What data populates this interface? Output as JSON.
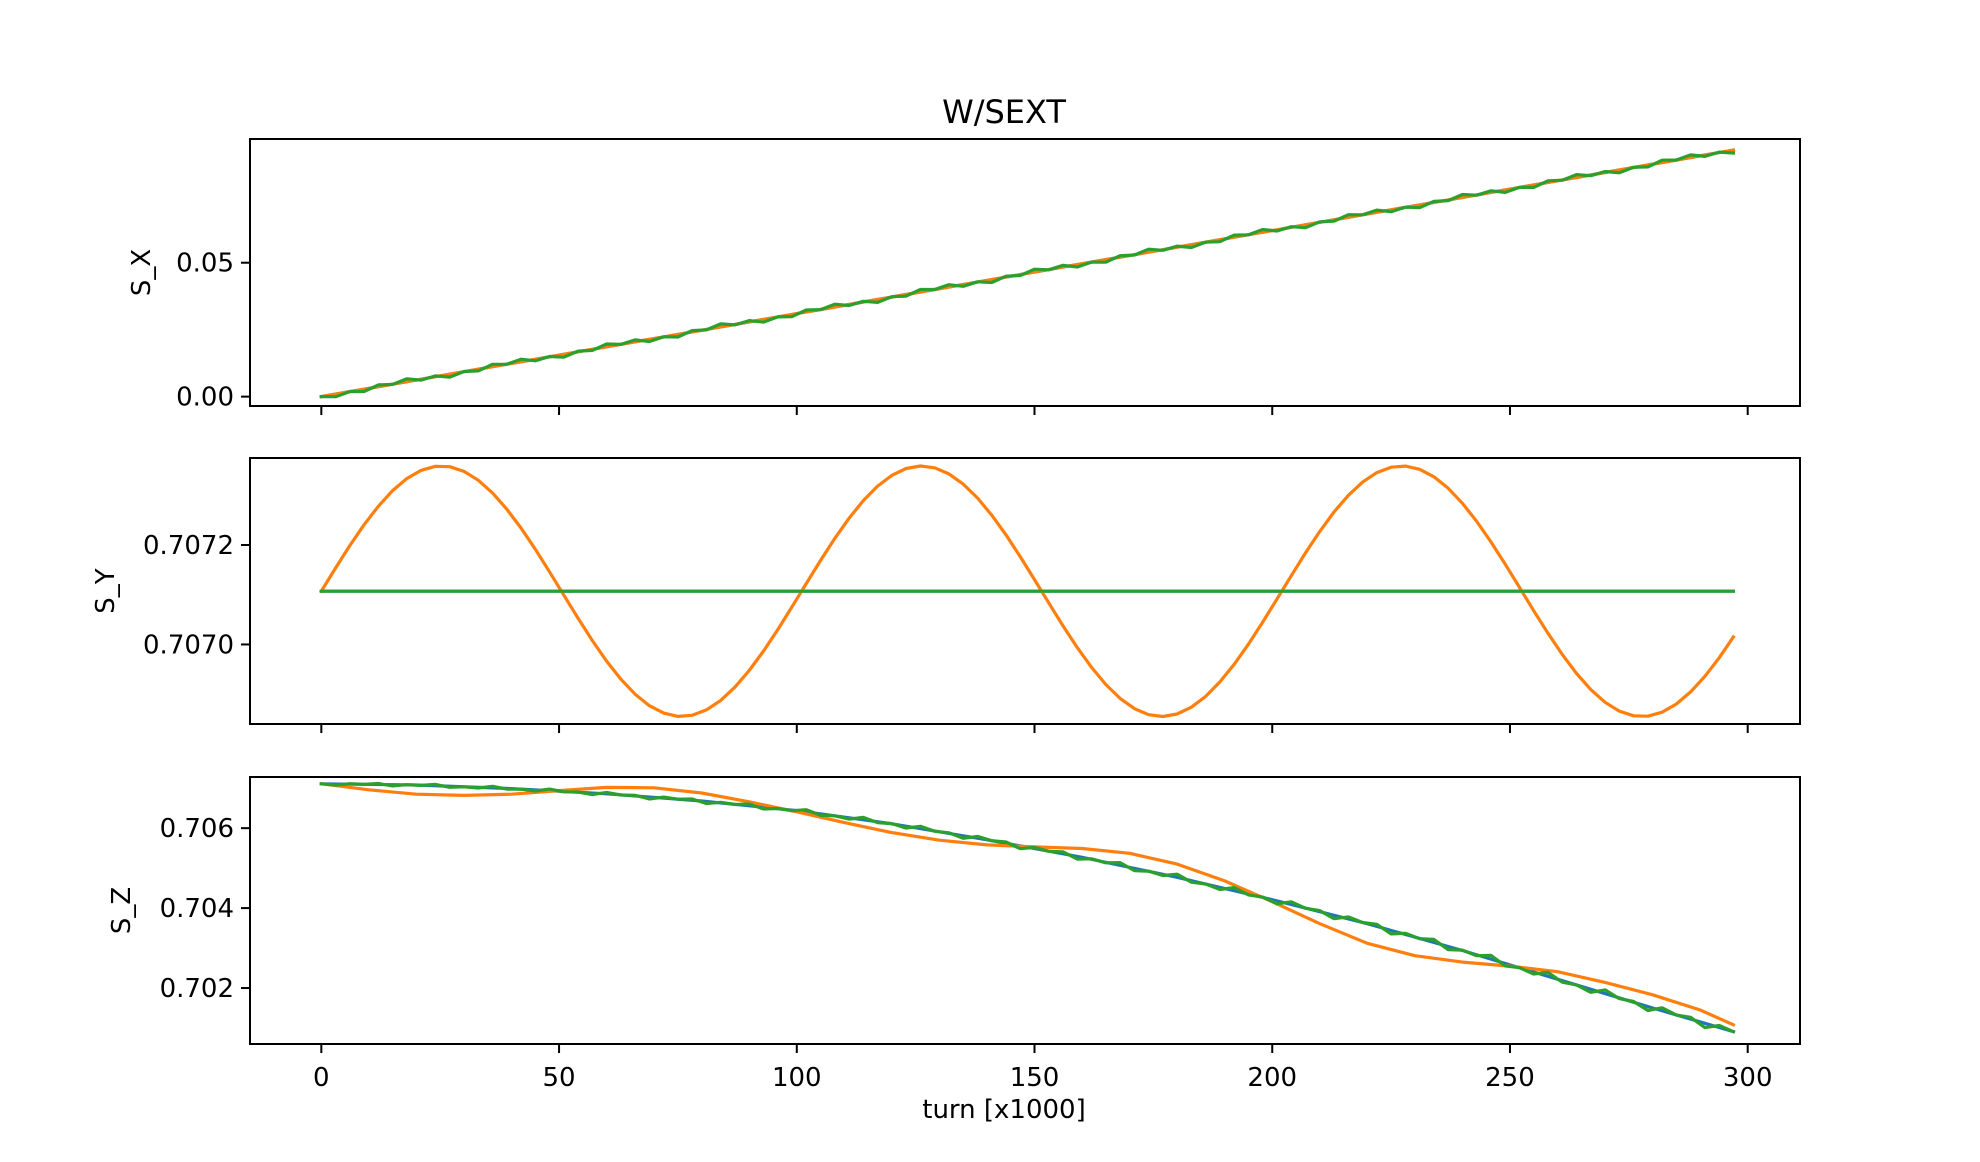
{
  "chart_data": {
    "type": "line",
    "title": "W/SEXT",
    "xlabel": "turn [x1000]",
    "xlim": [
      -15,
      311
    ],
    "xticks": [
      0,
      50,
      100,
      150,
      200,
      250,
      300
    ],
    "xtick_labels": [
      "0",
      "50",
      "100",
      "150",
      "200",
      "250",
      "300"
    ],
    "colors": {
      "blue": "#1f77b4",
      "orange": "#ff7f0e",
      "green": "#2ca02c"
    },
    "grid": false,
    "subplots": [
      {
        "id": "sx",
        "ylabel": "S_X",
        "ylim": [
          -0.0035,
          0.0962
        ],
        "yticks": [
          0.0,
          0.05
        ],
        "ytick_labels": [
          "0.00",
          "0.05"
        ],
        "series": [
          {
            "color": "#1f77b4",
            "kind": "generated",
            "gen": "linear",
            "a": 0.0,
            "b": 0.00031,
            "x_start": 0,
            "x_step": 3,
            "n": 100
          },
          {
            "color": "#ff7f0e",
            "kind": "generated",
            "gen": "linear",
            "a": 0.0,
            "b": 0.00031,
            "x_start": 0,
            "x_step": 3,
            "n": 100
          },
          {
            "color": "#2ca02c",
            "kind": "generated",
            "gen": "linear_zigzag",
            "a": 0.0,
            "b": 0.00031,
            "amp": 0.0011,
            "x_start": 0,
            "x_step": 3,
            "n": 100
          }
        ]
      },
      {
        "id": "sy",
        "ylabel": "S_Y",
        "ylim": [
          0.70684,
          0.707375
        ],
        "yticks": [
          0.707,
          0.7072
        ],
        "ytick_labels": [
          "0.7070",
          "0.7072"
        ],
        "series": [
          {
            "color": "#1f77b4",
            "kind": "generated",
            "gen": "constant",
            "a": 0.707107,
            "x_start": 0,
            "x_step": 3,
            "n": 100
          },
          {
            "color": "#ff7f0e",
            "kind": "generated",
            "gen": "sine",
            "a": 0.707107,
            "amp": 0.000252,
            "period": 101,
            "x_start": 0,
            "x_step": 3,
            "n": 100
          },
          {
            "color": "#2ca02c",
            "kind": "generated",
            "gen": "constant",
            "a": 0.707107,
            "x_start": 0,
            "x_step": 3,
            "n": 100
          }
        ]
      },
      {
        "id": "sz",
        "ylabel": "S_Z",
        "ylim": [
          0.7006,
          0.70728
        ],
        "yticks": [
          0.702,
          0.704,
          0.706
        ],
        "ytick_labels": [
          "0.702",
          "0.704",
          "0.706"
        ],
        "series": [
          {
            "color": "#1f77b4",
            "kind": "points",
            "x": [
              0,
              20,
              40,
              60,
              80,
              100,
              120,
              140,
              160,
              180,
              200,
              220,
              240,
              260,
              280,
              297
            ],
            "y": [
              0.70711,
              0.70708,
              0.70699,
              0.70686,
              0.70668,
              0.70644,
              0.70611,
              0.70571,
              0.70527,
              0.70477,
              0.70421,
              0.70361,
              0.70294,
              0.70222,
              0.7015,
              0.70091
            ]
          },
          {
            "color": "#ff7f0e",
            "kind": "points",
            "x": [
              0,
              10,
              20,
              30,
              40,
              50,
              60,
              70,
              80,
              90,
              100,
              110,
              120,
              130,
              140,
              150,
              160,
              170,
              180,
              190,
              200,
              210,
              220,
              230,
              240,
              250,
              260,
              270,
              280,
              290,
              297
            ],
            "y": [
              0.70711,
              0.70696,
              0.70685,
              0.70682,
              0.70685,
              0.70694,
              0.70702,
              0.70701,
              0.70688,
              0.70666,
              0.70641,
              0.70614,
              0.70589,
              0.7057,
              0.70558,
              0.70553,
              0.70549,
              0.70537,
              0.7051,
              0.70468,
              0.70416,
              0.70361,
              0.70312,
              0.70281,
              0.70265,
              0.70255,
              0.70241,
              0.70214,
              0.70183,
              0.70145,
              0.70108
            ]
          },
          {
            "color": "#2ca02c",
            "kind": "points",
            "x": [
              0,
              20,
              40,
              60,
              80,
              100,
              120,
              140,
              160,
              180,
              200,
              220,
              240,
              260,
              280,
              297
            ],
            "y": [
              0.70711,
              0.70708,
              0.70699,
              0.70686,
              0.70668,
              0.70644,
              0.70611,
              0.70571,
              0.70527,
              0.70477,
              0.70421,
              0.70361,
              0.70294,
              0.70222,
              0.7015,
              0.70091
            ],
            "jitter_amp": 3e-05,
            "jitter_grow": 8e-05
          }
        ]
      }
    ]
  }
}
